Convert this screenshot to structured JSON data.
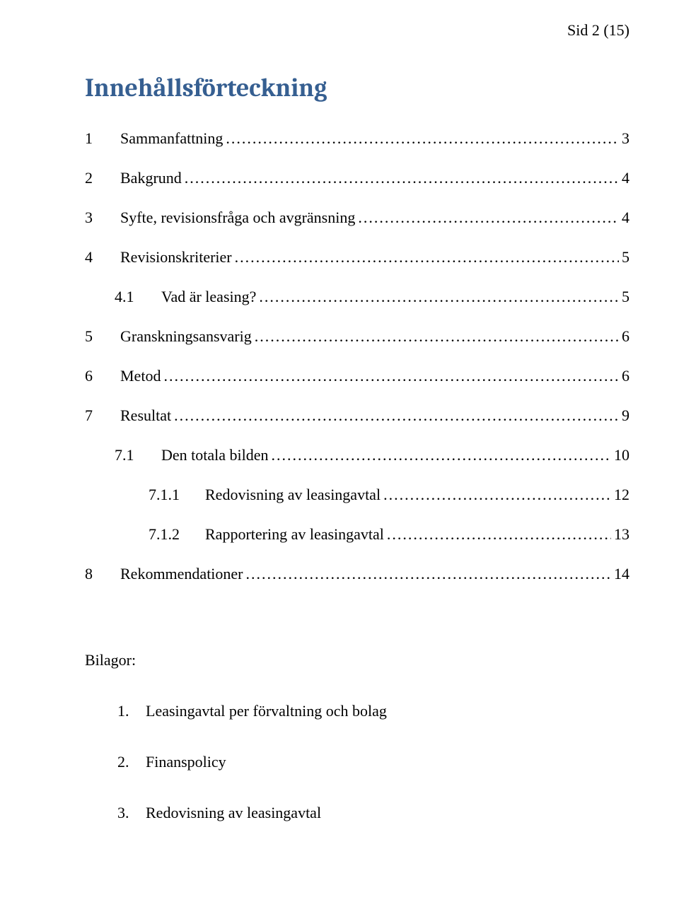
{
  "pageHeader": "Sid 2 (15)",
  "title": "Innehållsförteckning",
  "toc": [
    {
      "num": "1",
      "label": "Sammanfattning",
      "page": "3",
      "level": 0
    },
    {
      "num": "2",
      "label": "Bakgrund",
      "page": "4",
      "level": 0
    },
    {
      "num": "3",
      "label": "Syfte, revisionsfråga och avgränsning",
      "page": "4",
      "level": 0
    },
    {
      "num": "4",
      "label": "Revisionskriterier",
      "page": "5",
      "level": 0
    },
    {
      "num": "4.1",
      "label": "Vad är leasing?",
      "page": "5",
      "level": 1
    },
    {
      "num": "5",
      "label": "Granskningsansvarig",
      "page": "6",
      "level": 0
    },
    {
      "num": "6",
      "label": "Metod",
      "page": "6",
      "level": 0
    },
    {
      "num": "7",
      "label": "Resultat",
      "page": "9",
      "level": 0
    },
    {
      "num": "7.1",
      "label": "Den totala bilden",
      "page": "10",
      "level": 1
    },
    {
      "num": "7.1.1",
      "label": "Redovisning av leasingavtal",
      "page": "12",
      "level": 2
    },
    {
      "num": "7.1.2",
      "label": "Rapportering av leasingavtal",
      "page": "13",
      "level": 2
    },
    {
      "num": "8",
      "label": "Rekommendationer",
      "page": "14",
      "level": 0
    }
  ],
  "appendix": {
    "title": "Bilagor:",
    "items": [
      {
        "num": "1.",
        "label": "Leasingavtal per förvaltning och bolag"
      },
      {
        "num": "2.",
        "label": "Finanspolicy"
      },
      {
        "num": "3.",
        "label": "Redovisning av leasingavtal"
      }
    ]
  },
  "colors": {
    "titleColor": "#365f91",
    "textColor": "#000000",
    "background": "#ffffff"
  },
  "typography": {
    "titleFontSize": 36,
    "bodyFontSize": 22,
    "titleFontFamily": "Cambria",
    "bodyFontFamily": "Times New Roman"
  }
}
